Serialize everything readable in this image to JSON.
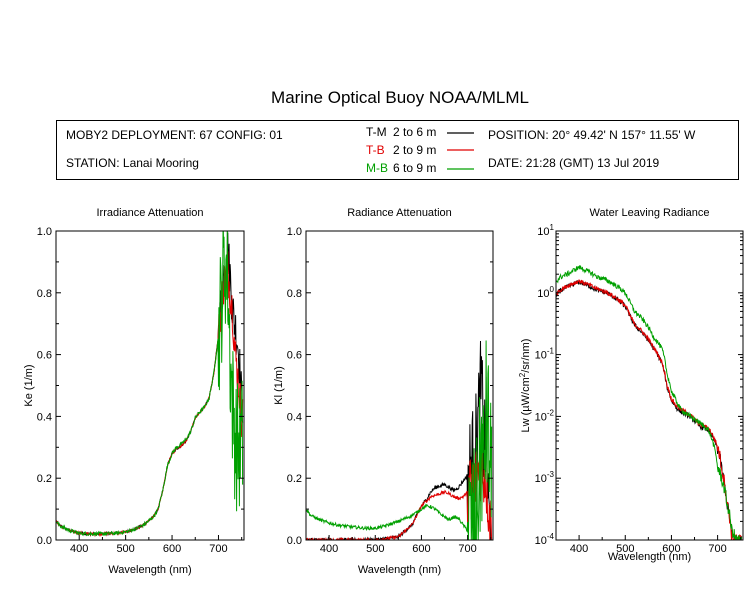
{
  "title": "Marine Optical Buoy NOAA/MLML",
  "info": {
    "deployment": "MOBY2 DEPLOYMENT: 67 CONFIG: 01",
    "station": "STATION: Lanai Mooring",
    "position": "POSITION: 20° 49.42' N   157° 11.55' W",
    "date": "DATE: 21:28 (GMT) 13 Jul 2019",
    "legend": [
      {
        "label": "T-M",
        "range": "2 to 6  m",
        "color": "#000000"
      },
      {
        "label": "T-B",
        "range": "2 to 9  m",
        "color": "#e00000"
      },
      {
        "label": "M-B",
        "range": "6 to 9  m",
        "color": "#00a000"
      }
    ]
  },
  "chart_data": [
    {
      "type": "line",
      "title": "Irradiance Attenuation",
      "xlabel": "Wavelength (nm)",
      "ylabel": "Ke  (1/m)",
      "xlim": [
        350,
        755
      ],
      "ylim": [
        0,
        1
      ],
      "yscale": "linear",
      "xticks": [
        400,
        500,
        600,
        700
      ],
      "yticks": [
        "0.0",
        "0.2",
        "0.4",
        "0.6",
        "0.8",
        "1.0"
      ],
      "series": [
        {
          "name": "T-M",
          "color": "#000000",
          "noise": 0.004,
          "tail_noise": 0.08,
          "x": [
            350,
            360,
            380,
            400,
            420,
            450,
            480,
            500,
            520,
            540,
            560,
            570,
            580,
            590,
            600,
            610,
            620,
            630,
            640,
            650,
            660,
            670,
            680,
            690,
            700,
            705,
            710,
            715,
            720,
            725,
            730,
            735,
            740,
            745,
            750
          ],
          "y": [
            0.06,
            0.045,
            0.03,
            0.022,
            0.02,
            0.02,
            0.022,
            0.026,
            0.035,
            0.05,
            0.075,
            0.1,
            0.16,
            0.24,
            0.28,
            0.295,
            0.305,
            0.32,
            0.35,
            0.395,
            0.415,
            0.43,
            0.46,
            0.54,
            0.66,
            0.75,
            0.84,
            0.9,
            0.94,
            0.86,
            0.75,
            0.7,
            0.66,
            0.58,
            0.45
          ]
        },
        {
          "name": "T-B",
          "color": "#e00000",
          "noise": 0.004,
          "tail_noise": 0.07,
          "x": [
            350,
            360,
            380,
            400,
            420,
            450,
            480,
            500,
            520,
            540,
            560,
            570,
            580,
            590,
            600,
            610,
            620,
            630,
            640,
            650,
            660,
            670,
            680,
            690,
            700,
            705,
            710,
            715,
            720,
            725,
            730,
            735,
            740,
            745,
            750
          ],
          "y": [
            0.06,
            0.045,
            0.03,
            0.022,
            0.02,
            0.02,
            0.022,
            0.026,
            0.035,
            0.05,
            0.075,
            0.1,
            0.16,
            0.24,
            0.28,
            0.295,
            0.305,
            0.32,
            0.35,
            0.395,
            0.415,
            0.43,
            0.46,
            0.54,
            0.66,
            0.74,
            0.82,
            0.85,
            0.88,
            0.8,
            0.75,
            0.62,
            0.55,
            0.48,
            0.4
          ]
        },
        {
          "name": "M-B",
          "color": "#00a000",
          "noise": 0.006,
          "tail_noise": 0.22,
          "x": [
            350,
            360,
            380,
            400,
            420,
            450,
            480,
            500,
            520,
            540,
            560,
            570,
            580,
            590,
            600,
            610,
            620,
            630,
            640,
            650,
            660,
            670,
            680,
            690,
            700,
            705,
            710,
            715,
            720,
            725,
            730,
            735,
            740,
            745,
            750
          ],
          "y": [
            0.06,
            0.045,
            0.03,
            0.022,
            0.02,
            0.02,
            0.022,
            0.026,
            0.035,
            0.05,
            0.075,
            0.1,
            0.16,
            0.24,
            0.28,
            0.3,
            0.31,
            0.325,
            0.35,
            0.395,
            0.415,
            0.43,
            0.46,
            0.54,
            0.66,
            0.75,
            0.85,
            0.9,
            0.85,
            0.6,
            0.45,
            0.35,
            0.3,
            0.3,
            0.32
          ]
        }
      ]
    },
    {
      "type": "line",
      "title": "Radiance Attenuation",
      "xlabel": "Wavelength (nm)",
      "ylabel": "Kl  (1/m)",
      "xlim": [
        350,
        755
      ],
      "ylim": [
        0,
        1
      ],
      "yscale": "linear",
      "xticks": [
        400,
        500,
        600,
        700
      ],
      "yticks": [
        "0.0",
        "0.2",
        "0.4",
        "0.6",
        "0.8",
        "1.0"
      ],
      "series": [
        {
          "name": "T-M",
          "color": "#000000",
          "noise": 0.006,
          "tail_noise": 0.18,
          "x": [
            350,
            380,
            400,
            450,
            500,
            550,
            580,
            600,
            610,
            620,
            630,
            640,
            650,
            660,
            670,
            680,
            690,
            700,
            710,
            720,
            725,
            730,
            735,
            740,
            745,
            750
          ],
          "y": [
            0.0,
            0.0,
            0.0,
            0.0,
            0.0,
            0.01,
            0.05,
            0.11,
            0.13,
            0.155,
            0.17,
            0.175,
            0.18,
            0.17,
            0.16,
            0.17,
            0.19,
            0.21,
            0.25,
            0.32,
            0.42,
            0.5,
            0.3,
            0.35,
            0.1,
            0.0
          ]
        },
        {
          "name": "T-B",
          "color": "#e00000",
          "noise": 0.005,
          "tail_noise": 0.12,
          "x": [
            350,
            380,
            400,
            450,
            500,
            550,
            580,
            600,
            610,
            620,
            630,
            640,
            650,
            660,
            670,
            680,
            690,
            700,
            710,
            720,
            725,
            730,
            735,
            740,
            745,
            750
          ],
          "y": [
            0.0,
            0.0,
            0.0,
            0.0,
            0.0,
            0.01,
            0.05,
            0.11,
            0.125,
            0.14,
            0.145,
            0.15,
            0.155,
            0.15,
            0.14,
            0.135,
            0.14,
            0.155,
            0.17,
            0.2,
            0.23,
            0.25,
            0.22,
            0.2,
            0.12,
            0.05
          ]
        },
        {
          "name": "M-B",
          "color": "#00a000",
          "noise": 0.005,
          "tail_noise": 0.26,
          "x": [
            350,
            360,
            380,
            400,
            420,
            450,
            480,
            500,
            520,
            550,
            580,
            600,
            610,
            620,
            630,
            640,
            650,
            660,
            670,
            680,
            690,
            700,
            710,
            720,
            725,
            730,
            735,
            740,
            745,
            750
          ],
          "y": [
            0.1,
            0.08,
            0.065,
            0.055,
            0.048,
            0.042,
            0.038,
            0.038,
            0.045,
            0.06,
            0.08,
            0.1,
            0.11,
            0.108,
            0.1,
            0.085,
            0.075,
            0.065,
            0.075,
            0.07,
            0.05,
            0.03,
            0.04,
            0.08,
            0.18,
            0.3,
            0.22,
            0.4,
            0.35,
            0.2
          ]
        }
      ]
    },
    {
      "type": "line",
      "title": "Water Leaving Radiance",
      "xlabel": "Wavelength (nm)",
      "ylabel_parts": [
        "Lw  (µW/cm",
        "2",
        "/sr/nm)"
      ],
      "xlim": [
        350,
        755
      ],
      "ylim": [
        0.0001,
        10
      ],
      "yscale": "log",
      "xticks": [
        400,
        500,
        600,
        700
      ],
      "yticks": [
        {
          "base": "10",
          "exp": "1"
        },
        {
          "base": "10",
          "exp": "0"
        },
        {
          "base": "10",
          "exp": "-1"
        },
        {
          "base": "10",
          "exp": "-2"
        },
        {
          "base": "10",
          "exp": "-3"
        },
        {
          "base": "10",
          "exp": "-4"
        }
      ],
      "series": [
        {
          "name": "T-M",
          "color": "#000000",
          "noise": 0.04,
          "tail_noise": 0.1,
          "x": [
            350,
            360,
            380,
            400,
            420,
            440,
            460,
            480,
            500,
            510,
            520,
            540,
            560,
            580,
            590,
            600,
            610,
            620,
            640,
            660,
            680,
            700,
            710,
            720,
            730,
            740,
            750
          ],
          "y": [
            0.9,
            1.1,
            1.3,
            1.5,
            1.3,
            1.1,
            1.0,
            0.8,
            0.6,
            0.42,
            0.3,
            0.21,
            0.13,
            0.07,
            0.03,
            0.018,
            0.014,
            0.012,
            0.01,
            0.007,
            0.006,
            0.003,
            0.0012,
            0.0004,
            0.00012,
            0.0001,
            0.0001
          ]
        },
        {
          "name": "T-B",
          "color": "#e00000",
          "noise": 0.035,
          "tail_noise": 0.1,
          "x": [
            350,
            360,
            380,
            400,
            420,
            440,
            460,
            480,
            500,
            510,
            520,
            540,
            560,
            580,
            590,
            600,
            610,
            620,
            640,
            660,
            680,
            700,
            710,
            720,
            730,
            740,
            750
          ],
          "y": [
            0.95,
            1.12,
            1.35,
            1.55,
            1.35,
            1.15,
            1.02,
            0.82,
            0.62,
            0.43,
            0.31,
            0.22,
            0.135,
            0.072,
            0.032,
            0.019,
            0.015,
            0.013,
            0.0105,
            0.0075,
            0.0065,
            0.0032,
            0.0013,
            0.0004,
            0.00012,
            0.0001,
            0.0001
          ]
        },
        {
          "name": "M-B",
          "color": "#00a000",
          "noise": 0.04,
          "tail_noise": 0.1,
          "x": [
            350,
            360,
            380,
            400,
            420,
            440,
            460,
            480,
            500,
            510,
            520,
            540,
            560,
            580,
            590,
            600,
            610,
            620,
            640,
            660,
            680,
            700,
            710,
            720,
            730,
            740,
            750
          ],
          "y": [
            1.5,
            1.8,
            2.1,
            2.6,
            2.2,
            1.8,
            1.6,
            1.3,
            1.0,
            0.7,
            0.5,
            0.35,
            0.2,
            0.12,
            0.05,
            0.025,
            0.018,
            0.013,
            0.01,
            0.008,
            0.006,
            0.0015,
            0.0009,
            0.0004,
            0.00015,
            0.0001,
            0.0001
          ]
        }
      ]
    }
  ]
}
